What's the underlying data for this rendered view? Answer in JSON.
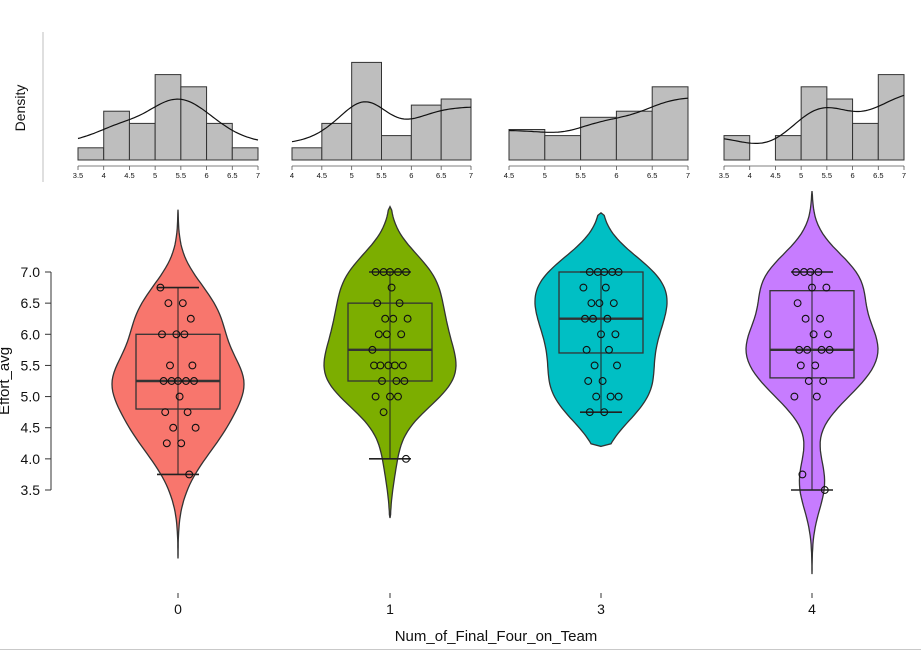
{
  "chart_data": {
    "type": "violin",
    "xlabel": "Num_of_Final_Four_on_Team",
    "ylabel": "Effort_avg",
    "ylim": [
      3.5,
      7.0
    ],
    "yticks": [
      "3.5",
      "4.0",
      "4.5",
      "5.0",
      "5.5",
      "6.0",
      "6.5",
      "7.0"
    ],
    "categories": [
      "0",
      "1",
      "3",
      "4"
    ],
    "colors": [
      "#F8766D",
      "#7CAE00",
      "#00BFC4",
      "#C77CFF"
    ],
    "grid": false,
    "legend": "none",
    "density_panel": {
      "ylabel": "Density",
      "histograms": [
        {
          "group": "0",
          "xticks": [
            "3.5",
            "4",
            "4.5",
            "5",
            "5.5",
            "6",
            "6.5",
            "7"
          ],
          "bins": [
            3.5,
            4.0,
            4.5,
            5.0,
            5.5,
            6.0,
            6.5,
            7.0
          ],
          "counts": [
            1,
            4,
            3,
            7,
            6,
            3,
            1
          ]
        },
        {
          "group": "1",
          "xticks": [
            "4",
            "4.5",
            "5",
            "5.5",
            "6",
            "6.5",
            "7"
          ],
          "bins": [
            4.0,
            4.5,
            5.0,
            5.5,
            6.0,
            6.5,
            7.0
          ],
          "counts": [
            1,
            3,
            8,
            2,
            4.5,
            5
          ]
        },
        {
          "group": "3",
          "xticks": [
            "4.5",
            "5",
            "5.5",
            "6",
            "6.5",
            "7"
          ],
          "bins": [
            4.5,
            5.0,
            5.5,
            6.0,
            6.5,
            7.0
          ],
          "counts": [
            2.5,
            2,
            3.5,
            4,
            6
          ]
        },
        {
          "group": "4",
          "xticks": [
            "3.5",
            "4",
            "4.5",
            "5",
            "5.5",
            "6",
            "6.5",
            "7"
          ],
          "bins": [
            3.5,
            4.0,
            4.5,
            5.0,
            5.5,
            6.0,
            6.5,
            7.0
          ],
          "counts": [
            2,
            0,
            2,
            6,
            5,
            3,
            7
          ]
        }
      ]
    },
    "violins": [
      {
        "group": "0",
        "color": "#F8766D",
        "box": {
          "q1": 4.8,
          "median": 5.25,
          "q3": 6.0
        },
        "whiskers": [
          3.75,
          6.75
        ],
        "extent": [
          2.4,
          8.0
        ],
        "points": [
          6.75,
          6.5,
          6.5,
          6.25,
          6.0,
          6.0,
          6.0,
          5.5,
          5.5,
          5.25,
          5.25,
          5.25,
          5.25,
          5.25,
          5.0,
          4.75,
          4.75,
          4.5,
          4.5,
          4.25,
          4.25,
          3.75
        ]
      },
      {
        "group": "1",
        "color": "#7CAE00",
        "box": {
          "q1": 5.25,
          "median": 5.75,
          "q3": 6.5
        },
        "whiskers": [
          4.0,
          7.0
        ],
        "extent": [
          3.05,
          8.05
        ],
        "points": [
          7.0,
          7.0,
          7.0,
          7.0,
          7.0,
          6.75,
          6.5,
          6.5,
          6.25,
          6.25,
          6.25,
          6.0,
          6.0,
          6.0,
          5.75,
          5.5,
          5.5,
          5.5,
          5.5,
          5.5,
          5.25,
          5.25,
          5.25,
          5.0,
          5.0,
          5.0,
          4.75,
          4.0
        ]
      },
      {
        "group": "3",
        "color": "#00BFC4",
        "box": {
          "q1": 5.7,
          "median": 6.25,
          "q3": 7.0
        },
        "whiskers": [
          4.75,
          7.0
        ],
        "extent": [
          4.2,
          7.95
        ],
        "points": [
          7.0,
          7.0,
          7.0,
          7.0,
          7.0,
          6.75,
          6.75,
          6.5,
          6.5,
          6.5,
          6.25,
          6.25,
          6.25,
          6.0,
          6.0,
          5.75,
          5.75,
          5.5,
          5.5,
          5.25,
          5.25,
          5.0,
          5.0,
          5.0,
          4.75,
          4.75
        ]
      },
      {
        "group": "4",
        "color": "#C77CFF",
        "box": {
          "q1": 5.3,
          "median": 5.75,
          "q3": 6.7
        },
        "whiskers": [
          3.5,
          7.0
        ],
        "extent": [
          2.15,
          8.3
        ],
        "points": [
          7.0,
          7.0,
          7.0,
          7.0,
          6.75,
          6.75,
          6.5,
          6.25,
          6.25,
          6.0,
          6.0,
          5.75,
          5.75,
          5.75,
          5.75,
          5.5,
          5.5,
          5.25,
          5.25,
          5.0,
          5.0,
          3.75,
          3.5
        ]
      }
    ]
  }
}
